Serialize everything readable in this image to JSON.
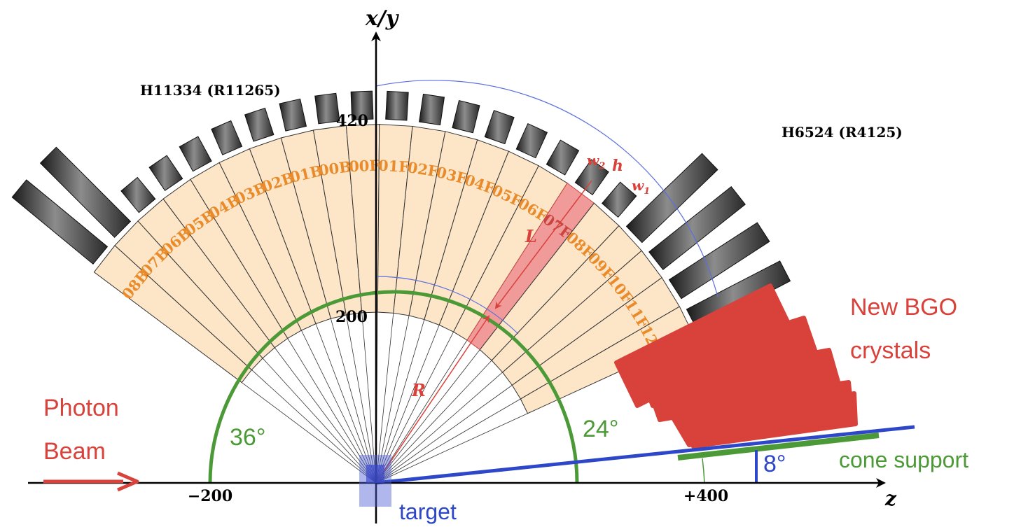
{
  "axes": {
    "vertical_label": "x/y",
    "horizontal_label": "z",
    "tick_minus200": "−200",
    "tick_plus400": "+400",
    "tick_200": "200",
    "tick_420": "420"
  },
  "pmt_labels": {
    "left": "H11334 (R11265)",
    "right": "H6524 (R4125)"
  },
  "crystal_labels": [
    "08B",
    "07B",
    "06B",
    "05B",
    "04B",
    "03B",
    "02B",
    "01B",
    "00B",
    "00F",
    "01F",
    "02F",
    "03F",
    "04F",
    "05F",
    "06F",
    "07F",
    "08F",
    "09F",
    "10F",
    "11F",
    "12F"
  ],
  "highlighted_crystal": "07F",
  "dimension_labels": {
    "w2": "w",
    "w2_sub": "2",
    "h": "h",
    "w1": "w",
    "w1_sub": "1",
    "L": "L",
    "R": "R"
  },
  "angles": {
    "left": "36°",
    "right": "24°",
    "cone": "8°"
  },
  "annotations": {
    "photon_line1": "Photon",
    "photon_line2": "Beam",
    "new_bgo_line1": "New BGO",
    "new_bgo_line2": "crystals",
    "cone_support": "cone support",
    "target": "target"
  },
  "colors": {
    "crystal_fill": "#fde5c8",
    "crystal_label": "#e98b2a",
    "highlight_fill": "#f19a9a",
    "red": "#d9413b",
    "green": "#4c9a37",
    "blue": "#2d47c8",
    "thin_blue": "#5a6ee0"
  }
}
